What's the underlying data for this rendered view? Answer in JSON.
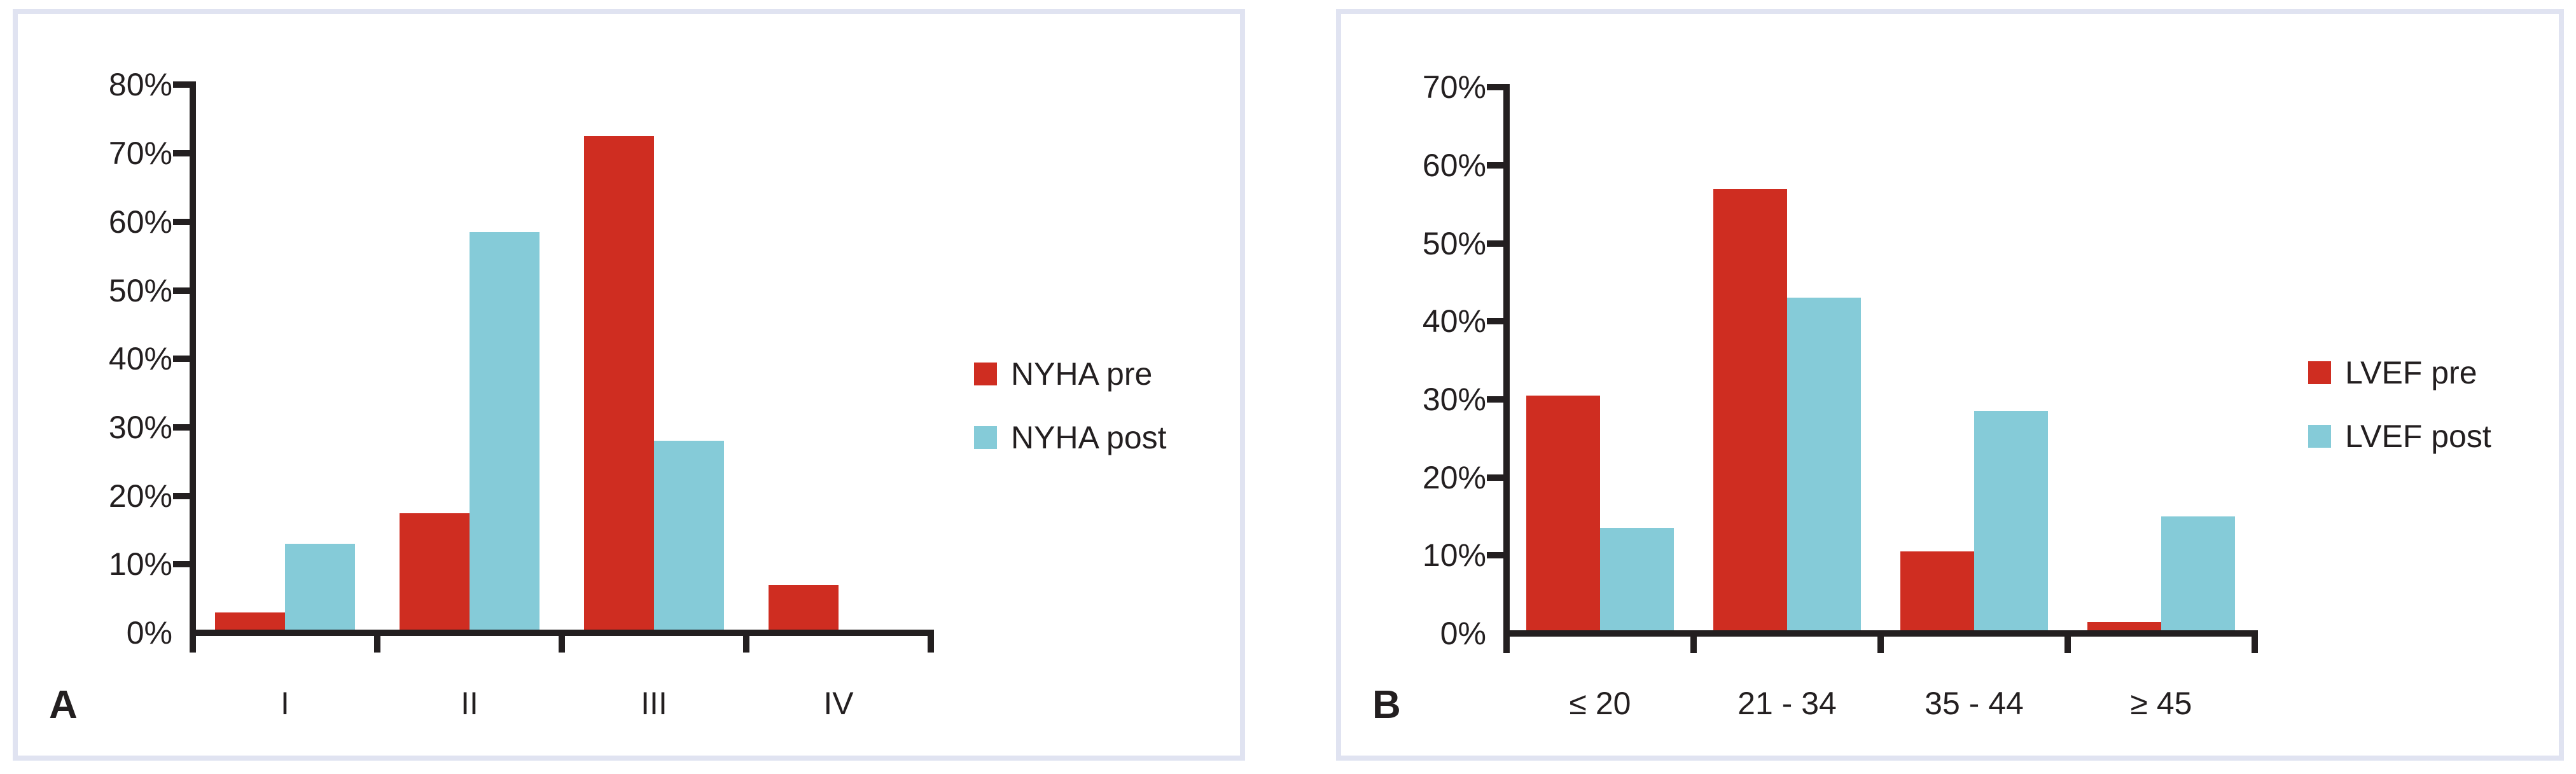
{
  "figure": {
    "background": "#ffffff",
    "panel_border_color": "#e0e3f1",
    "axis_color": "#231f20",
    "text_color": "#231f20",
    "series_colors": {
      "pre": "#cf2d21",
      "post": "#85cbd8"
    }
  },
  "panels": [
    {
      "label": "A",
      "legend": [
        {
          "name": "NYHA pre",
          "color": "#cf2d21"
        },
        {
          "name": "NYHA post",
          "color": "#85cbd8"
        }
      ]
    },
    {
      "label": "B",
      "legend": [
        {
          "name": "LVEF pre",
          "color": "#cf2d21"
        },
        {
          "name": "LVEF post",
          "color": "#85cbd8"
        }
      ]
    }
  ],
  "chart_data": [
    {
      "type": "bar",
      "title": "",
      "categories": [
        "I",
        "II",
        "III",
        "IV"
      ],
      "series": [
        {
          "name": "NYHA pre",
          "color": "#cf2d21",
          "values": [
            3,
            17.5,
            72.5,
            7
          ]
        },
        {
          "name": "NYHA post",
          "color": "#85cbd8",
          "values": [
            13,
            58.5,
            28,
            0.5
          ]
        }
      ],
      "xlabel": "",
      "ylabel": "",
      "ylim": [
        0,
        80
      ],
      "ytick_step": 10,
      "ytick_format": "percent",
      "grid": false,
      "legend_position": "right"
    },
    {
      "type": "bar",
      "title": "",
      "categories": [
        "≤ 20",
        "21 - 34",
        "35 - 44",
        "≥ 45"
      ],
      "series": [
        {
          "name": "LVEF pre",
          "color": "#cf2d21",
          "values": [
            30.5,
            57,
            10.5,
            1.5
          ]
        },
        {
          "name": "LVEF post",
          "color": "#85cbd8",
          "values": [
            13.5,
            43,
            28.5,
            15
          ]
        }
      ],
      "xlabel": "",
      "ylabel": "",
      "ylim": [
        0,
        70
      ],
      "ytick_step": 10,
      "ytick_format": "percent",
      "grid": false,
      "legend_position": "right"
    }
  ]
}
